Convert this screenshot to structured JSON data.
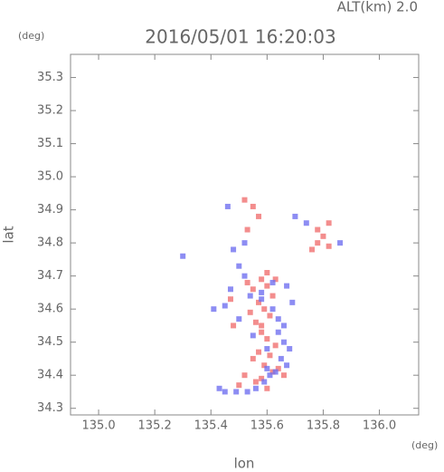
{
  "chart_data": {
    "type": "scatter",
    "annotation": "ALT(km) 2.0",
    "title": "2016/05/01 16:20:03",
    "y_unit": "(deg)",
    "x_unit": "(deg)",
    "xlabel": "lon",
    "ylabel": "lat",
    "xlim": [
      134.9,
      136.14
    ],
    "ylim": [
      34.28,
      35.37
    ],
    "xticks": [
      {
        "value": 135.0,
        "label": "135.0"
      },
      135.2,
      135.4,
      135.6,
      135.8,
      {
        "value": 136.0,
        "label": "136.0"
      }
    ],
    "yticks": [
      35.3,
      35.2,
      35.1,
      {
        "value": 35.0,
        "label": "35.0"
      },
      34.9,
      34.8,
      34.7,
      34.6,
      34.5,
      34.4,
      34.3
    ],
    "series": [
      {
        "color": "#f07070",
        "x": [
          135.53,
          135.55,
          135.58,
          135.6,
          135.62,
          135.57,
          135.59,
          135.61,
          135.56,
          135.54,
          135.58,
          135.6,
          135.63,
          135.57,
          135.55,
          135.59,
          135.62,
          135.58,
          135.56,
          135.6,
          135.64,
          135.52,
          135.5,
          135.47,
          135.58,
          135.61,
          135.66,
          135.78,
          135.8,
          135.82,
          135.76,
          135.78,
          135.82,
          135.52,
          135.55,
          135.57,
          135.53,
          135.6,
          135.63,
          135.48
        ],
        "y": [
          34.68,
          34.66,
          34.69,
          34.67,
          34.64,
          34.62,
          34.6,
          34.58,
          34.56,
          34.59,
          34.53,
          34.51,
          34.49,
          34.47,
          34.45,
          34.43,
          34.41,
          34.39,
          34.38,
          34.36,
          34.42,
          34.4,
          34.37,
          34.63,
          34.55,
          34.46,
          34.4,
          34.8,
          34.82,
          34.79,
          34.78,
          34.84,
          34.86,
          34.93,
          34.91,
          34.88,
          34.84,
          34.71,
          34.69,
          34.55
        ]
      },
      {
        "color": "#7070f0",
        "x": [
          135.5,
          135.52,
          135.47,
          135.54,
          135.58,
          135.62,
          135.64,
          135.66,
          135.68,
          135.65,
          135.67,
          135.63,
          135.61,
          135.59,
          135.56,
          135.53,
          135.49,
          135.45,
          135.43,
          135.41,
          135.67,
          135.69,
          135.64,
          135.6,
          135.55,
          135.5,
          135.52,
          135.48,
          135.3,
          135.86,
          135.74,
          135.7,
          135.46,
          135.45,
          135.58,
          135.62,
          135.66,
          135.6
        ],
        "y": [
          34.73,
          34.7,
          34.66,
          34.64,
          34.63,
          34.6,
          34.57,
          34.5,
          34.48,
          34.45,
          34.43,
          34.41,
          34.4,
          34.38,
          34.36,
          34.35,
          34.35,
          34.35,
          34.36,
          34.6,
          34.67,
          34.62,
          34.53,
          34.48,
          34.52,
          34.57,
          34.8,
          34.78,
          34.76,
          34.8,
          34.86,
          34.88,
          34.91,
          34.61,
          34.65,
          34.68,
          34.55,
          34.42
        ]
      }
    ]
  }
}
